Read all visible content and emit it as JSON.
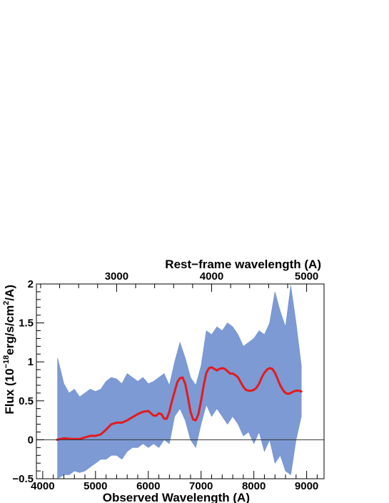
{
  "chart_data": {
    "type": "line",
    "title": "",
    "xlabel": "Observed Wavelength (A)",
    "x2label": "Rest−frame wavelength (A)",
    "ylabel": {
      "prefix": "Flux (10",
      "exp1": "−18",
      "mid": "erg/s/cm",
      "exp2": "2",
      "suffix": "/A)"
    },
    "xlim": [
      3880,
      9330
    ],
    "ylim": [
      -0.5,
      2
    ],
    "x_ticks": [
      4000,
      5000,
      6000,
      7000,
      8000,
      9000
    ],
    "x_tick_labels": [
      "4000",
      "5000",
      "6000",
      "7000",
      "8000",
      "9000"
    ],
    "y_ticks": [
      -0.5,
      0,
      0.5,
      1,
      1.5,
      2
    ],
    "y_tick_labels": [
      "−0.5",
      "0",
      "0.5",
      "1",
      "1.5",
      "2"
    ],
    "rest_ticks": [
      3000,
      4000,
      5000
    ],
    "rest_tick_labels": [
      "3000",
      "4000",
      "5000"
    ],
    "rest_frame_factor": 1.8,
    "zero_line": 0,
    "colors": {
      "spectrum": "#6f8fcf",
      "model": "#e41a1c",
      "axis": "#000000"
    },
    "series": [
      {
        "kind": "band",
        "x": [
          4280,
          4400,
          4500,
          4600,
          4700,
          4800,
          4900,
          5000,
          5100,
          5200,
          5300,
          5400,
          5500,
          5600,
          5700,
          5800,
          5900,
          6000,
          6100,
          6200,
          6300,
          6400,
          6500,
          6600,
          6700,
          6800,
          6900,
          7000,
          7100,
          7200,
          7300,
          7400,
          7500,
          7600,
          7700,
          7800,
          7900,
          8000,
          8100,
          8200,
          8300,
          8400,
          8500,
          8600,
          8700,
          8800,
          8900
        ],
        "upper": [
          1.05,
          0.72,
          0.6,
          0.65,
          0.55,
          0.6,
          0.65,
          0.62,
          0.65,
          0.75,
          0.8,
          0.78,
          0.72,
          0.85,
          0.8,
          0.75,
          0.8,
          0.72,
          0.75,
          0.8,
          0.85,
          0.7,
          1.0,
          1.25,
          1.05,
          0.8,
          0.7,
          0.95,
          1.4,
          1.35,
          1.45,
          1.4,
          1.5,
          1.45,
          1.35,
          1.2,
          1.25,
          1.3,
          1.4,
          1.35,
          1.5,
          1.9,
          1.65,
          1.45,
          1.98,
          1.5,
          0.95
        ],
        "lower": [
          -0.5,
          -0.45,
          -0.45,
          -0.4,
          -0.42,
          -0.4,
          -0.35,
          -0.3,
          -0.25,
          -0.25,
          -0.2,
          -0.2,
          -0.25,
          -0.15,
          -0.1,
          -0.1,
          -0.05,
          -0.1,
          -0.05,
          -0.1,
          0.0,
          -0.05,
          0.3,
          0.4,
          0.25,
          0.0,
          -0.1,
          0.2,
          0.45,
          0.3,
          0.4,
          0.3,
          0.2,
          0.3,
          0.2,
          0.05,
          0.1,
          -0.05,
          0.1,
          -0.15,
          0.0,
          -0.3,
          -0.2,
          -0.4,
          -0.45,
          0.0,
          0.3
        ]
      },
      {
        "kind": "line",
        "x": [
          4270,
          4400,
          4550,
          4700,
          4800,
          4900,
          5000,
          5100,
          5200,
          5300,
          5400,
          5500,
          5600,
          5700,
          5800,
          5900,
          6000,
          6050,
          6100,
          6150,
          6200,
          6250,
          6300,
          6350,
          6400,
          6450,
          6500,
          6550,
          6600,
          6650,
          6700,
          6750,
          6800,
          6850,
          6900,
          6950,
          7000,
          7050,
          7100,
          7150,
          7200,
          7250,
          7300,
          7350,
          7400,
          7450,
          7500,
          7550,
          7600,
          7650,
          7700,
          7750,
          7800,
          7850,
          7900,
          7950,
          8000,
          8050,
          8100,
          8150,
          8200,
          8250,
          8300,
          8350,
          8400,
          8450,
          8500,
          8550,
          8600,
          8650,
          8700,
          8750,
          8800,
          8850,
          8900
        ],
        "y": [
          0.0,
          0.02,
          0.01,
          0.01,
          0.03,
          0.05,
          0.05,
          0.07,
          0.13,
          0.2,
          0.22,
          0.22,
          0.25,
          0.29,
          0.33,
          0.36,
          0.37,
          0.34,
          0.31,
          0.31,
          0.34,
          0.33,
          0.27,
          0.27,
          0.36,
          0.5,
          0.62,
          0.74,
          0.79,
          0.8,
          0.72,
          0.55,
          0.36,
          0.26,
          0.25,
          0.33,
          0.5,
          0.7,
          0.86,
          0.92,
          0.93,
          0.91,
          0.89,
          0.91,
          0.92,
          0.91,
          0.88,
          0.85,
          0.85,
          0.83,
          0.8,
          0.74,
          0.68,
          0.64,
          0.63,
          0.63,
          0.64,
          0.67,
          0.72,
          0.8,
          0.86,
          0.9,
          0.92,
          0.91,
          0.86,
          0.78,
          0.7,
          0.64,
          0.6,
          0.59,
          0.6,
          0.62,
          0.63,
          0.63,
          0.62
        ]
      }
    ]
  }
}
